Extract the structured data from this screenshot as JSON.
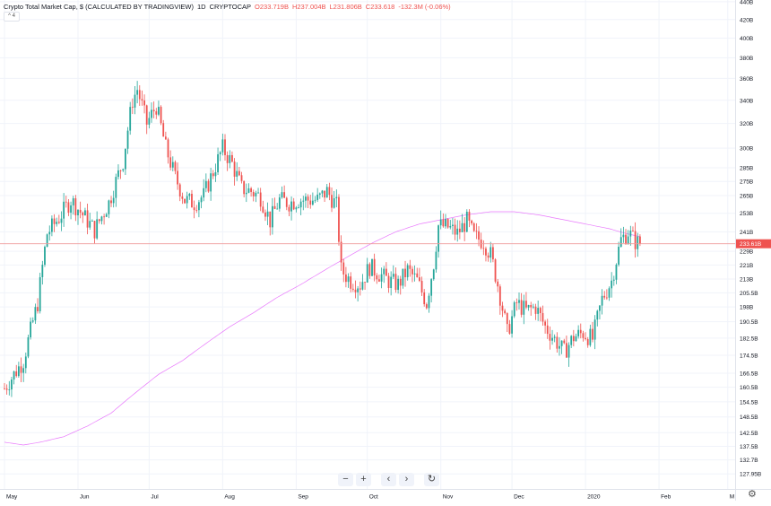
{
  "header": {
    "title": "Crypto Total Market Cap, $ (CALCULATED BY TRADINGVIEW)",
    "interval": "1D",
    "symbol": "CRYPTOCAP",
    "ohlc": {
      "open": "O233.719B",
      "high": "H237.004B",
      "low": "L231.806B",
      "close": "C233.618",
      "change": "-132.3M (-0.06%)"
    },
    "toggle_label": "4"
  },
  "last_price_label": "233.61B",
  "navigation": {
    "zoom_out": "−",
    "zoom_in": "+",
    "scroll_left": "‹",
    "scroll_right": "›",
    "reset": "↻"
  },
  "settings_icon": "gear-icon",
  "colors": {
    "up": "#26a69a",
    "down": "#ef5350",
    "ma": "#e040fb",
    "last_price_line": "#ef9a9a",
    "last_price_bg": "#ef5350"
  },
  "chart_data": {
    "type": "candlestick",
    "title": "Crypto Total Market Cap, $ (CALCULATED BY TRADINGVIEW)",
    "scale": "log",
    "ylim": [
      123,
      442
    ],
    "y_ticks": [
      "440B",
      "420B",
      "400B",
      "380B",
      "360B",
      "340B",
      "320B",
      "300B",
      "285B",
      "275B",
      "265B",
      "253B",
      "241B",
      "229B",
      "221B",
      "213B",
      "205.5B",
      "198B",
      "190.5B",
      "182.5B",
      "174.5B",
      "166.5B",
      "160.5B",
      "154.5B",
      "148.5B",
      "142.5B",
      "137.5B",
      "132.7B",
      "127.95B"
    ],
    "y_tick_values": [
      440,
      420,
      400,
      380,
      360,
      340,
      320,
      300,
      285,
      275,
      265,
      253,
      241,
      229,
      221,
      213,
      205.5,
      198,
      190.5,
      182.5,
      174.5,
      166.5,
      160.5,
      154.5,
      148.5,
      142.5,
      137.5,
      132.7,
      127.95
    ],
    "x_ticks": [
      "May",
      "Jun",
      "Jul",
      "Aug",
      "Sep",
      "Oct",
      "Nov",
      "Dec",
      "2020",
      "Feb",
      "M"
    ],
    "x_tick_days": [
      0,
      31,
      61,
      92,
      123,
      153,
      184,
      214,
      245,
      276,
      305
    ],
    "x_range_days": [
      0,
      310
    ],
    "price_series_keypoints": [
      [
        0,
        160
      ],
      [
        8,
        172
      ],
      [
        14,
        200
      ],
      [
        18,
        240
      ],
      [
        23,
        250
      ],
      [
        28,
        262
      ],
      [
        33,
        252
      ],
      [
        38,
        242
      ],
      [
        44,
        260
      ],
      [
        50,
        290
      ],
      [
        54,
        340
      ],
      [
        56,
        350
      ],
      [
        60,
        320
      ],
      [
        64,
        335
      ],
      [
        68,
        300
      ],
      [
        72,
        278
      ],
      [
        76,
        262
      ],
      [
        80,
        260
      ],
      [
        84,
        265
      ],
      [
        88,
        282
      ],
      [
        92,
        300
      ],
      [
        96,
        288
      ],
      [
        100,
        270
      ],
      [
        104,
        268
      ],
      [
        108,
        264
      ],
      [
        112,
        248
      ],
      [
        116,
        262
      ],
      [
        120,
        260
      ],
      [
        124,
        262
      ],
      [
        128,
        262
      ],
      [
        132,
        262
      ],
      [
        136,
        268
      ],
      [
        140,
        258
      ],
      [
        142,
        218
      ],
      [
        146,
        212
      ],
      [
        150,
        210
      ],
      [
        154,
        220
      ],
      [
        158,
        216
      ],
      [
        162,
        212
      ],
      [
        166,
        210
      ],
      [
        170,
        218
      ],
      [
        174,
        212
      ],
      [
        178,
        200
      ],
      [
        181,
        222
      ],
      [
        183,
        245
      ],
      [
        187,
        244
      ],
      [
        191,
        240
      ],
      [
        195,
        248
      ],
      [
        198,
        238
      ],
      [
        202,
        235
      ],
      [
        205,
        227
      ],
      [
        208,
        210
      ],
      [
        212,
        185
      ],
      [
        216,
        200
      ],
      [
        220,
        196
      ],
      [
        224,
        198
      ],
      [
        228,
        188
      ],
      [
        232,
        182
      ],
      [
        236,
        176
      ],
      [
        240,
        183
      ],
      [
        244,
        185
      ],
      [
        248,
        182
      ],
      [
        252,
        202
      ],
      [
        256,
        212
      ],
      [
        260,
        236
      ],
      [
        263,
        241
      ],
      [
        266,
        235
      ],
      [
        268,
        233.6
      ]
    ],
    "moving_average_keypoints": [
      [
        0,
        139
      ],
      [
        8,
        138
      ],
      [
        15,
        139
      ],
      [
        25,
        141
      ],
      [
        35,
        145
      ],
      [
        45,
        150
      ],
      [
        55,
        158
      ],
      [
        65,
        166
      ],
      [
        75,
        172
      ],
      [
        85,
        180
      ],
      [
        95,
        188
      ],
      [
        105,
        195
      ],
      [
        115,
        203
      ],
      [
        125,
        210
      ],
      [
        135,
        218
      ],
      [
        145,
        226
      ],
      [
        155,
        234
      ],
      [
        165,
        241
      ],
      [
        175,
        246
      ],
      [
        185,
        249
      ],
      [
        195,
        252
      ],
      [
        205,
        254
      ],
      [
        215,
        254
      ],
      [
        225,
        252
      ],
      [
        235,
        249
      ],
      [
        245,
        246
      ],
      [
        255,
        243
      ],
      [
        262,
        240
      ],
      [
        268,
        238
      ]
    ],
    "last_close": 233.61
  }
}
